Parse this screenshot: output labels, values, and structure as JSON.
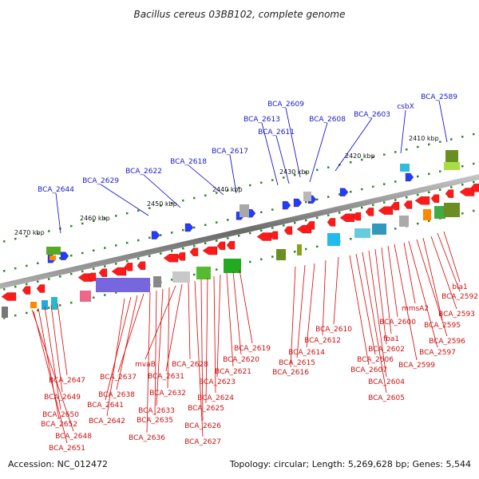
{
  "title": "Bacillus cereus 03BB102, complete genome",
  "accession": "Accession: NC_012472",
  "topology": "Topology: circular; Length: 5,269,628 bp; Genes: 5,544",
  "colors": {
    "backbone": "#808080",
    "forward_label": "#0000cc",
    "reverse_label": "#dd0000",
    "gene_forward": "#1f3fff",
    "gene_reverse": "#ff1a1a",
    "tick": "#2a7a2a"
  },
  "ticks": [
    "2410 kbp",
    "2420 kbp",
    "2430 kbp",
    "2440 kbp",
    "2450 kbp",
    "2460 kbp",
    "2470 kbp"
  ],
  "forward_genes": [
    "BCA_2589",
    "csbX",
    "BCA_2603",
    "BCA_2608",
    "BCA_2609",
    "BCA_2611",
    "BCA_2613",
    "BCA_2617",
    "BCA_2618",
    "BCA_2622",
    "BCA_2629",
    "BCA_2644"
  ],
  "reverse_genes": [
    "bla1",
    "BCA_2592",
    "BCA_2593",
    "BCA_2595",
    "BCA_2596",
    "BCA_2597",
    "mmsA2",
    "BCA_2599",
    "BCA_2600",
    "fba1",
    "BCA_2602",
    "BCA_2604",
    "BCA_2605",
    "BCA_2606",
    "BCA_2607",
    "BCA_2610",
    "BCA_2612",
    "BCA_2614",
    "BCA_2615",
    "BCA_2616",
    "BCA_2619",
    "BCA_2620",
    "BCA_2621",
    "BCA_2623",
    "BCA_2624",
    "BCA_2625",
    "BCA_2626",
    "BCA_2627",
    "BCA_2628",
    "BCA_2631",
    "mvaB",
    "BCA_2632",
    "BCA_2633",
    "BCA_2635",
    "BCA_2636",
    "BCA_2637",
    "BCA_2638",
    "BCA_2641",
    "BCA_2642",
    "BCA_2647",
    "BCA_2649",
    "BCA_2650",
    "BCA_2652",
    "BCA_2648",
    "BCA_2651"
  ]
}
